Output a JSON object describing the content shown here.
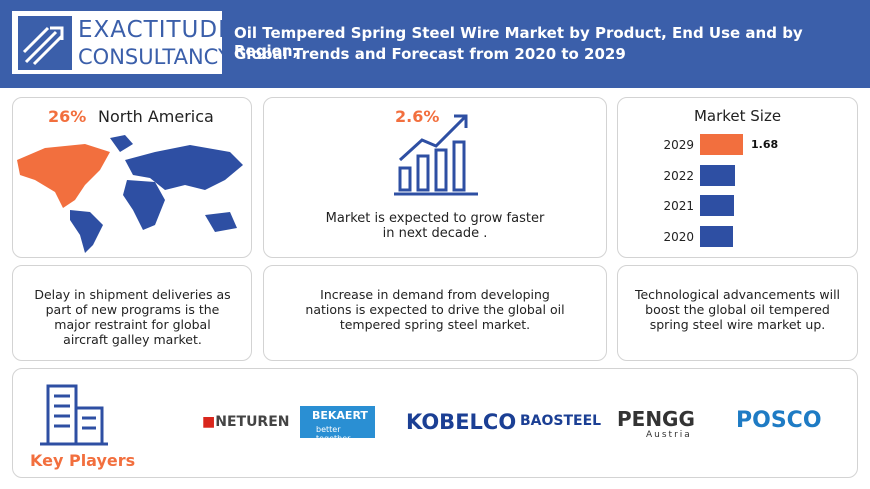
{
  "header": {
    "logo_top": "EXACTITUDE",
    "logo_bottom": "CONSULTANCY",
    "title_line1": "Oil Tempered Spring Steel Wire Market by Product, End Use and by Region,",
    "title_line2": "Global Trends and Forecast from 2020 to 2029"
  },
  "region": {
    "share": "26%",
    "name": "North America"
  },
  "growth": {
    "rate": "2.6%",
    "text": "Market is expected to grow faster in next decade ."
  },
  "market_size": {
    "title": "Market Size",
    "categories": [
      "2029",
      "2022",
      "2021",
      "2020"
    ],
    "values": [
      1.68,
      1.37,
      1.33,
      1.29
    ],
    "colors": [
      "#f26f3e",
      "#2e4fa3",
      "#2e4fa3",
      "#2e4fa3"
    ]
  },
  "notes": [
    "Delay in shipment deliveries as part of new programs is the major restraint for global aircraft galley market.",
    "Increase in demand from developing nations is expected to drive the global oil tempered spring steel market.",
    "Technological advancements will boost the global oil tempered spring steel wire  market up."
  ],
  "key_players": {
    "title": "Key Players",
    "logos": [
      "NETUREN",
      "BEKAERT",
      "better together",
      "KOBELCO",
      "BAOSTEEL",
      "PENGG",
      "Austria",
      "POSCO"
    ]
  }
}
